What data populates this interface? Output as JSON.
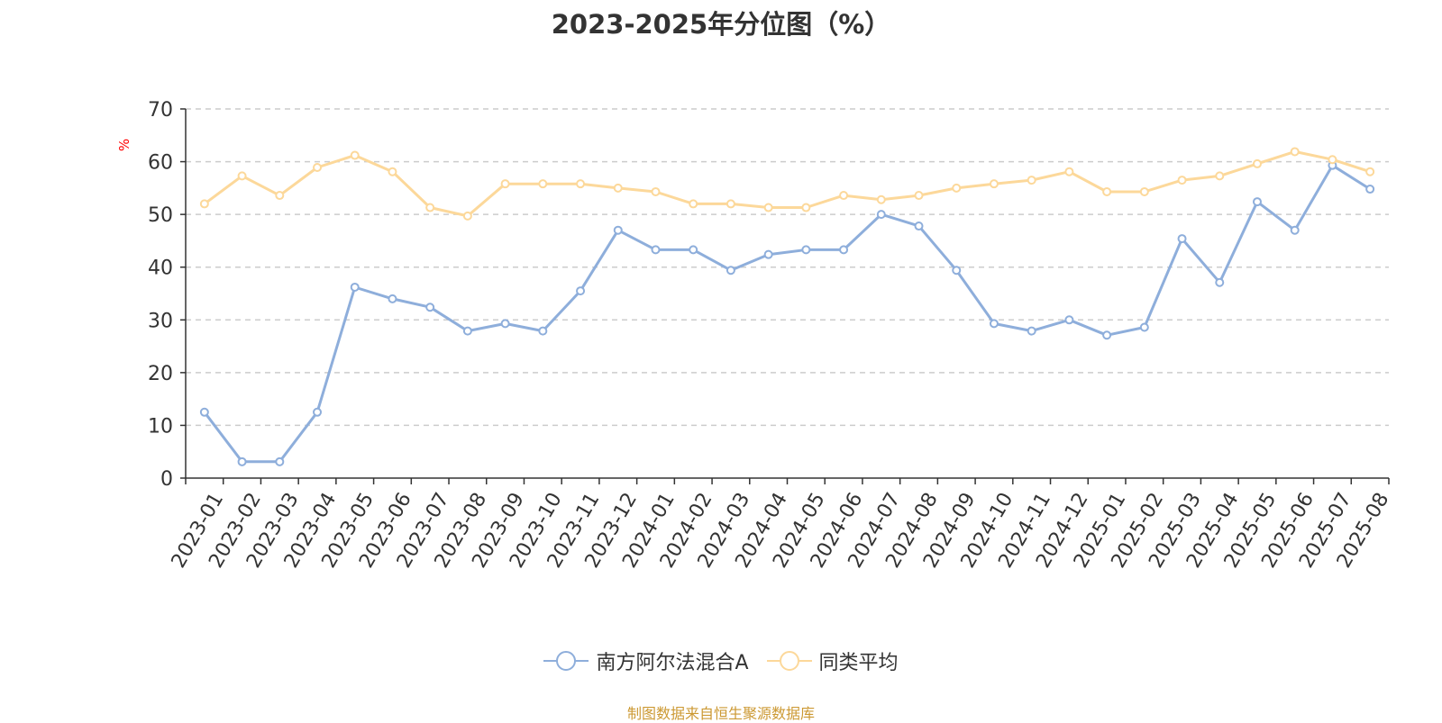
{
  "chart_data": {
    "type": "line",
    "title": "2023-2025年分位图（%）",
    "ylabel": "%",
    "xlabel": "",
    "ylim": [
      0,
      70
    ],
    "yticks": [
      0,
      10,
      20,
      30,
      40,
      50,
      60,
      70
    ],
    "grid": true,
    "legend_position": "bottom-center",
    "categories": [
      "2023-01",
      "2023-02",
      "2023-03",
      "2023-04",
      "2023-05",
      "2023-06",
      "2023-07",
      "2023-08",
      "2023-09",
      "2023-10",
      "2023-11",
      "2023-12",
      "2024-01",
      "2024-02",
      "2024-03",
      "2024-04",
      "2024-05",
      "2024-06",
      "2024-07",
      "2024-08",
      "2024-09",
      "2024-10",
      "2024-11",
      "2024-12",
      "2025-01",
      "2025-02",
      "2025-03",
      "2025-04",
      "2025-05",
      "2025-06",
      "2025-07",
      "2025-08"
    ],
    "series": [
      {
        "name": "南方阿尔法混合A",
        "color": "#8eaedb",
        "values": [
          12.5,
          3.1,
          3.1,
          12.5,
          36.2,
          34.0,
          32.4,
          27.9,
          29.3,
          27.9,
          35.5,
          47.0,
          43.3,
          43.3,
          39.4,
          42.4,
          43.3,
          43.3,
          50.0,
          47.8,
          39.4,
          29.3,
          27.9,
          30.0,
          27.1,
          28.6,
          45.4,
          37.1,
          52.4,
          47.0,
          59.3,
          54.8
        ]
      },
      {
        "name": "同类平均",
        "color": "#fcd89a",
        "values": [
          52.0,
          57.3,
          53.6,
          58.9,
          61.2,
          58.1,
          51.3,
          49.7,
          55.8,
          55.8,
          55.8,
          55.0,
          54.3,
          52.0,
          52.0,
          51.3,
          51.3,
          53.6,
          52.8,
          53.6,
          55.0,
          55.8,
          56.5,
          58.1,
          54.3,
          54.3,
          56.5,
          57.3,
          59.6,
          61.9,
          60.4,
          58.1
        ]
      }
    ]
  },
  "source_text": "制图数据来自恒生聚源数据库"
}
